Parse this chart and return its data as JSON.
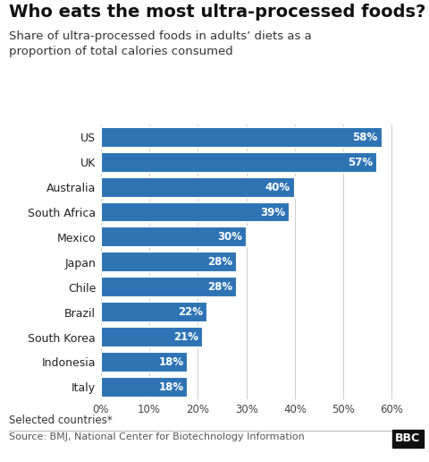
{
  "title": "Who eats the most ultra-processed foods?",
  "subtitle": "Share of ultra-processed foods in adults’ diets as a\nproportion of total calories consumed",
  "countries": [
    "US",
    "UK",
    "Australia",
    "South Africa",
    "Mexico",
    "Japan",
    "Chile",
    "Brazil",
    "South Korea",
    "Indonesia",
    "Italy"
  ],
  "values": [
    58,
    57,
    40,
    39,
    30,
    28,
    28,
    22,
    21,
    18,
    18
  ],
  "bar_color": "#2e74b5",
  "label_color": "#ffffff",
  "background_color": "#ffffff",
  "xlim": [
    0,
    65
  ],
  "xticks": [
    0,
    10,
    20,
    30,
    40,
    50,
    60
  ],
  "xtick_labels": [
    "0%",
    "10%",
    "20%",
    "30%",
    "40%",
    "50%",
    "60%"
  ],
  "footnote": "Selected countries*",
  "source": "Source: BMJ, National Center for Biotechnology Information",
  "bbc_label": "BBC",
  "title_fontsize": 14,
  "subtitle_fontsize": 9.5,
  "label_fontsize": 8.5,
  "tick_fontsize": 8.5,
  "ytick_fontsize": 9,
  "footnote_fontsize": 8.5,
  "source_fontsize": 8.0
}
